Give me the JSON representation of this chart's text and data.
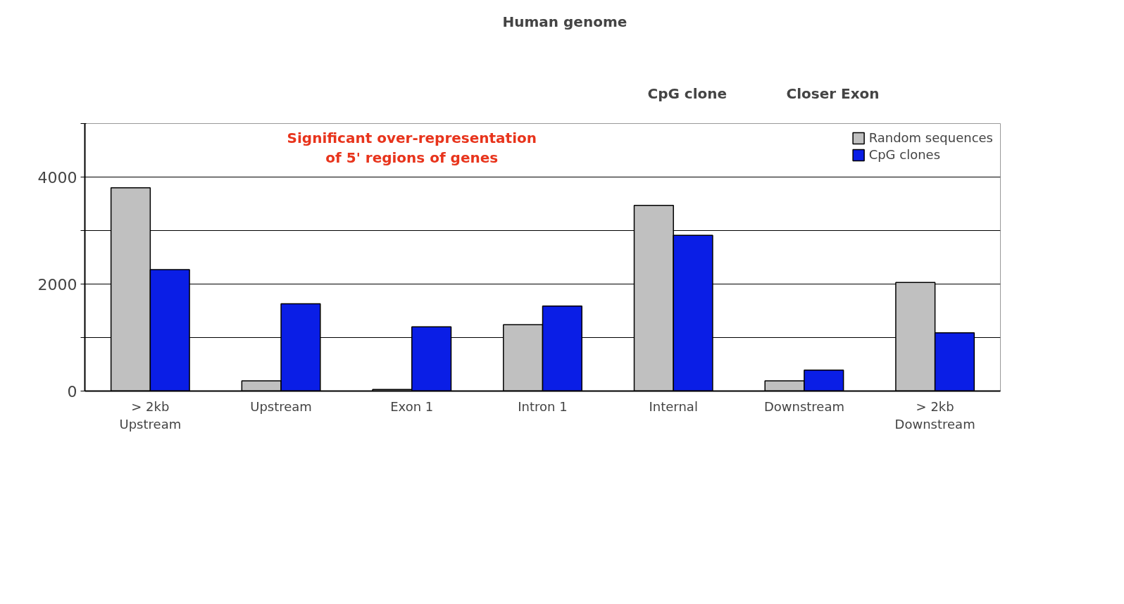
{
  "chart_data": {
    "type": "bar",
    "categories": [
      "> 2kb\nUpstream",
      "Upstream",
      "Exon 1",
      "Intron 1",
      "Internal",
      "Downstream",
      "> 2kb\nDownstream"
    ],
    "series": [
      {
        "name": "Random sequences",
        "color": "#c0c0c0",
        "values": [
          3800,
          190,
          30,
          1240,
          3470,
          190,
          2030
        ]
      },
      {
        "name": "CpG clones",
        "color": "#0a1ee6",
        "values": [
          2270,
          1630,
          1200,
          1590,
          2910,
          390,
          1090
        ]
      }
    ],
    "ylim": [
      0,
      5000
    ],
    "yticks": [
      0,
      {
        "value": 1000,
        "label": null
      },
      2000,
      {
        "value": 3000,
        "label": null
      },
      4000,
      {
        "value": 5000,
        "label": null
      }
    ],
    "grid": "y",
    "legend": "top right",
    "annotations": [
      "Human genome",
      "CpG clone",
      "Closer Exon",
      "Significant over-representation\nof 5' regions of genes"
    ]
  }
}
